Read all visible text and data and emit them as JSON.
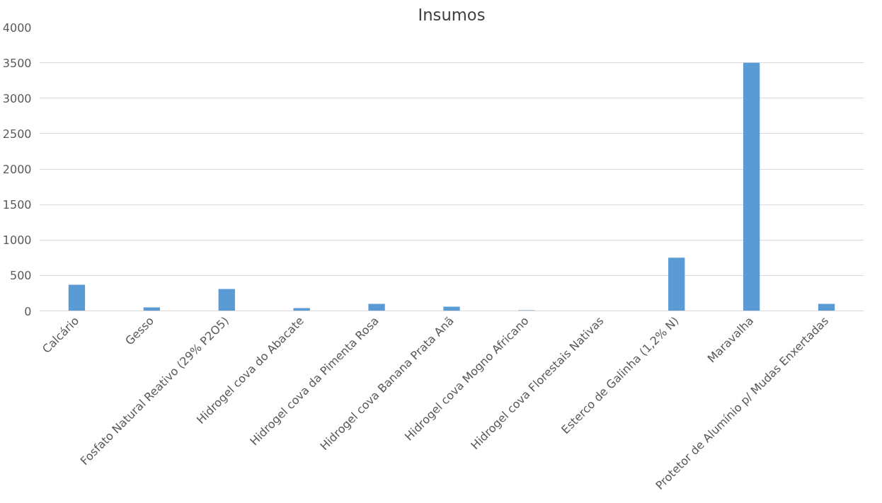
{
  "chart_data": {
    "type": "bar",
    "title": "Insumos",
    "categories": [
      "Calcário",
      "Gesso",
      "Fosfato Natural Reativo (29% P2O5)",
      "Hidrogel cova do Abacate",
      "Hidrogel cova da Pimenta Rosa",
      "Hidrogel cova Banana Prata Anã",
      "Hidrogel cova Mogno Africano",
      "Hidrogel cova Florestais Nativas",
      "Esterco de Galinha (1,2% N)",
      "Maravalha",
      "Protetor de Alumínio p/ Mudas Enxertadas"
    ],
    "values": [
      370,
      50,
      310,
      40,
      100,
      60,
      10,
      0,
      750,
      3500,
      100
    ],
    "color": "#5b9bd5",
    "ylim": [
      0,
      4000
    ],
    "yticks": [
      0,
      500,
      1000,
      1500,
      2000,
      2500,
      3000,
      3500,
      4000
    ],
    "grid": "y"
  }
}
